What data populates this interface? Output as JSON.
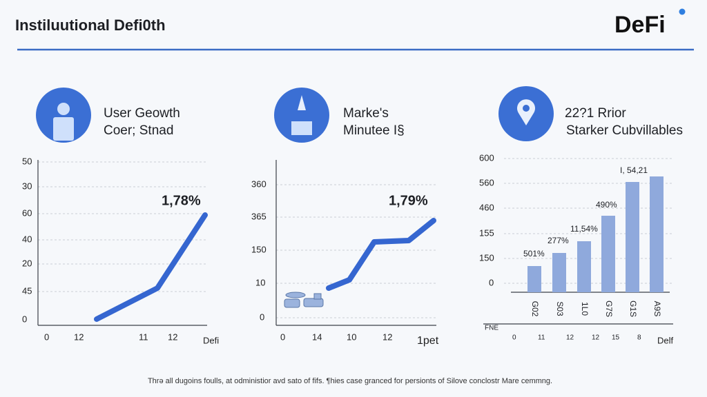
{
  "header": {
    "title": "Instiluutional Defi0th",
    "logo": "DeFi"
  },
  "panels": [
    {
      "lines": [
        "User Geowth",
        "Coer; Stnad"
      ],
      "y_labels": [
        "50",
        "30",
        "60",
        "40",
        "20",
        "45",
        "0"
      ],
      "x_labels": [
        "0",
        "12",
        "11",
        "12",
        "Defi"
      ],
      "annotation": "1,78%"
    },
    {
      "lines": [
        "Marke's",
        "Minutee I§"
      ],
      "y_labels": [
        "360",
        "365",
        "150",
        "10",
        "0"
      ],
      "x_labels": [
        "0",
        "14",
        "10",
        "12",
        "1pet"
      ],
      "annotation": "1,79%"
    },
    {
      "lines": [
        "22?1 Rrior",
        "Starker Cubvillables"
      ],
      "y_labels": [
        "600",
        "560",
        "460",
        "155",
        "150",
        "0"
      ],
      "bar_labels": [
        "501%",
        "277%",
        "11,54%",
        "490%",
        "I, 54,21"
      ],
      "categories": [
        "G02",
        "S03",
        "1L0",
        "G7S",
        "G1S",
        "A9S"
      ],
      "axis_note": "FNE",
      "x_labels": [
        "0",
        "11",
        "12",
        "12",
        "15",
        "8",
        "Delf"
      ]
    }
  ],
  "footer": "Thrə all dugoins foulls, at odministior avd sato of fifs. ¶hies case granced for persionts of Silove conclostr Mare cemmng."
}
